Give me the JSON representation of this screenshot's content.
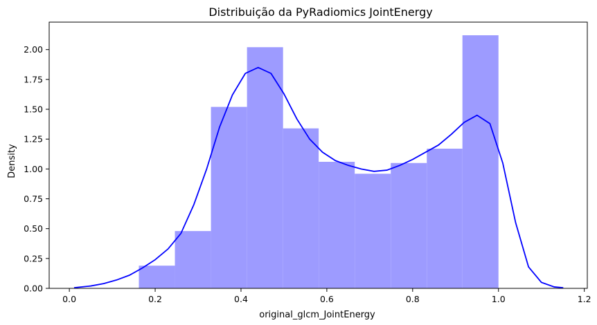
{
  "chart_data": {
    "type": "bar",
    "title": "Distribuição da PyRadiomics JointEnergy",
    "xlabel": "original_glcm_JointEnergy",
    "ylabel": "Density",
    "xlim": [
      -0.047,
      1.207
    ],
    "ylim": [
      0,
      2.23
    ],
    "xticks": [
      0.0,
      0.2,
      0.4,
      0.6,
      0.8,
      1.0,
      1.2
    ],
    "xtick_labels": [
      "0.0",
      "0.2",
      "0.4",
      "0.6",
      "0.8",
      "1.0",
      "1.2"
    ],
    "yticks": [
      0,
      0.25,
      0.5,
      0.75,
      1.0,
      1.25,
      1.5,
      1.75,
      2.0
    ],
    "ytick_labels": [
      "0.00",
      "0.25",
      "0.50",
      "0.75",
      "1.00",
      "1.25",
      "1.50",
      "1.75",
      "2.00"
    ],
    "grid": false,
    "histogram": {
      "color": "#9d9bff",
      "bins": [
        {
          "x0": 0.162,
          "x1": 0.246,
          "value": 0.19
        },
        {
          "x0": 0.246,
          "x1": 0.33,
          "value": 0.48
        },
        {
          "x0": 0.33,
          "x1": 0.414,
          "value": 1.52
        },
        {
          "x0": 0.414,
          "x1": 0.498,
          "value": 2.02
        },
        {
          "x0": 0.498,
          "x1": 0.581,
          "value": 1.34
        },
        {
          "x0": 0.581,
          "x1": 0.665,
          "value": 1.06
        },
        {
          "x0": 0.665,
          "x1": 0.749,
          "value": 0.96
        },
        {
          "x0": 0.749,
          "x1": 0.833,
          "value": 1.05
        },
        {
          "x0": 0.833,
          "x1": 0.916,
          "value": 1.17
        },
        {
          "x0": 0.916,
          "x1": 1.0,
          "value": 2.12
        }
      ]
    },
    "kde": {
      "color": "#0000ff",
      "x": [
        0.011,
        0.05,
        0.08,
        0.11,
        0.14,
        0.17,
        0.2,
        0.23,
        0.26,
        0.29,
        0.32,
        0.35,
        0.38,
        0.41,
        0.44,
        0.47,
        0.5,
        0.53,
        0.56,
        0.59,
        0.62,
        0.65,
        0.68,
        0.71,
        0.74,
        0.77,
        0.8,
        0.83,
        0.86,
        0.89,
        0.92,
        0.95,
        0.98,
        1.01,
        1.04,
        1.07,
        1.1,
        1.13,
        1.151
      ],
      "y": [
        0.005,
        0.02,
        0.04,
        0.07,
        0.11,
        0.17,
        0.24,
        0.33,
        0.46,
        0.7,
        1.0,
        1.35,
        1.62,
        1.8,
        1.85,
        1.8,
        1.63,
        1.42,
        1.25,
        1.14,
        1.07,
        1.03,
        1.0,
        0.98,
        0.99,
        1.03,
        1.08,
        1.14,
        1.2,
        1.29,
        1.39,
        1.45,
        1.38,
        1.05,
        0.55,
        0.18,
        0.05,
        0.012,
        0.005
      ]
    }
  }
}
